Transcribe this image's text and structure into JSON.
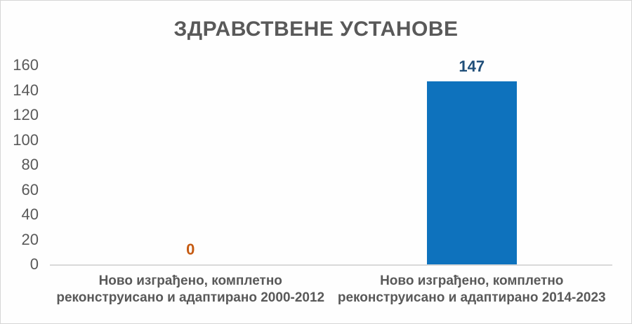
{
  "chart_data": {
    "type": "bar",
    "title": "ЗДРАВСТВЕНЕ УСТАНОВЕ",
    "categories": [
      "Ново изграђено, комплетно\nреконструисано и адаптирано 2000-2012",
      "Ново изграђено, комплетно\nреконструисано и адаптирано 2014-2023"
    ],
    "values": [
      0,
      147
    ],
    "value_labels": [
      "0",
      "147"
    ],
    "value_label_colors": [
      "#C55A11",
      "#1F4E79"
    ],
    "yticks": [
      0,
      20,
      40,
      60,
      80,
      100,
      120,
      140,
      160
    ],
    "ylim": [
      0,
      160
    ],
    "xlabel": "",
    "ylabel": "",
    "grid": false,
    "legend": false,
    "bar_color": "#0E72BD",
    "axis_line_color": "#D9D9D9",
    "text_color": "#595959"
  }
}
